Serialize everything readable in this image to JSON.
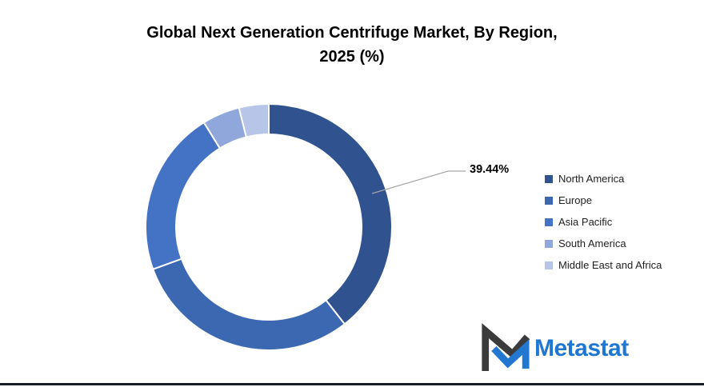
{
  "title": {
    "line1": "Global Next Generation Centrifuge Market, By Region,",
    "line2": "2025 (%)"
  },
  "chart_data": {
    "type": "pie",
    "subtype": "donut",
    "title": "Global Next Generation Centrifuge Market, By Region, 2025 (%)",
    "labels": [
      "North America",
      "Europe",
      "Asia Pacific",
      "South America",
      "Middle East and Africa"
    ],
    "values": [
      39.44,
      30.0,
      21.72,
      4.94,
      3.9
    ],
    "colors": [
      "#30538F",
      "#3C68B1",
      "#4472C4",
      "#8FA7DB",
      "#B7C5E8"
    ],
    "start_angle_deg": 0,
    "direction": "clockwise",
    "inner_radius_ratio": 0.755,
    "legend_position": "right",
    "data_labels": [
      {
        "series": "North America",
        "text": "39.44%",
        "shown": true
      }
    ]
  },
  "annotation": {
    "value_label": "39.44%",
    "leader_line_color": "#a6a6a6"
  },
  "logo": {
    "text": "Metastat",
    "brand_color": "#1E77D3",
    "mark_dark_color": "#3B3B3B"
  }
}
